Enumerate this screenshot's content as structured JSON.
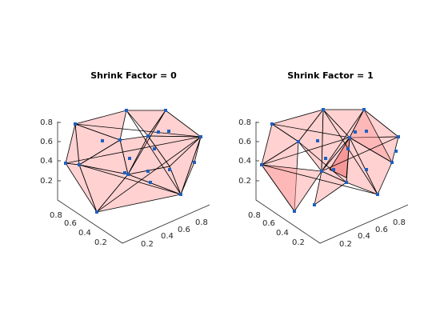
{
  "chart_data": [
    {
      "type": "scatter",
      "title": "Shrink Factor = 0",
      "z_ticks": [
        "0.2",
        "0.4",
        "0.6",
        "0.8"
      ],
      "y_ticks": [
        "0.2",
        "0.4",
        "0.6",
        "0.8"
      ],
      "x_ticks": [
        "0.2",
        "0.4",
        "0.6",
        "0.8"
      ],
      "face_color": "#ff9a9a",
      "point_color": "#1f5fbf"
    },
    {
      "type": "scatter",
      "title": "Shrink Factor = 1",
      "z_ticks": [
        "0.2",
        "0.4",
        "0.6",
        "0.8"
      ],
      "y_ticks": [
        "0.2",
        "0.4",
        "0.6",
        "0.8"
      ],
      "x_ticks": [
        "0.2",
        "0.4",
        "0.6",
        "0.8"
      ],
      "face_color": "#ff9a9a",
      "point_color": "#1f5fbf"
    }
  ]
}
